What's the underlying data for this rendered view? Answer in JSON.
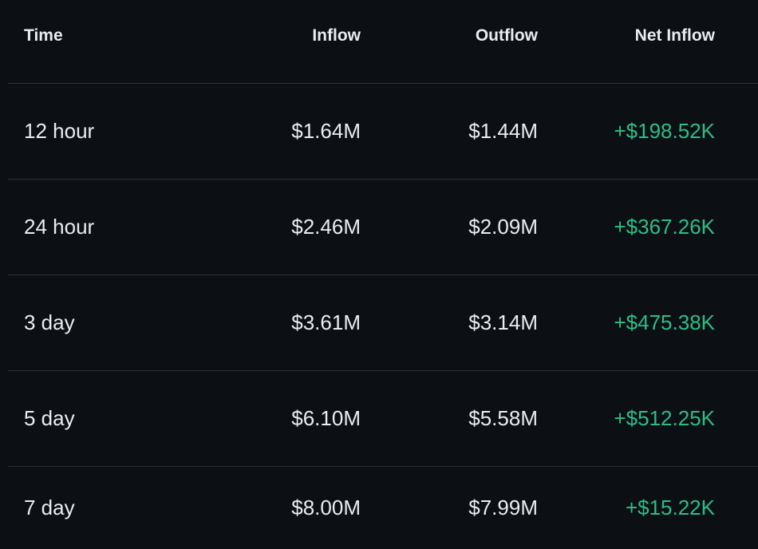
{
  "table": {
    "headers": {
      "time": "Time",
      "inflow": "Inflow",
      "outflow": "Outflow",
      "net_inflow": "Net Inflow"
    },
    "rows": [
      {
        "time": "12 hour",
        "inflow": "$1.64M",
        "outflow": "$1.44M",
        "net_inflow": "+$198.52K"
      },
      {
        "time": "24 hour",
        "inflow": "$2.46M",
        "outflow": "$2.09M",
        "net_inflow": "+$367.26K"
      },
      {
        "time": "3 day",
        "inflow": "$3.61M",
        "outflow": "$3.14M",
        "net_inflow": "+$475.38K"
      },
      {
        "time": "5 day",
        "inflow": "$6.10M",
        "outflow": "$5.58M",
        "net_inflow": "+$512.25K"
      },
      {
        "time": "7 day",
        "inflow": "$8.00M",
        "outflow": "$7.99M",
        "net_inflow": "+$15.22K"
      }
    ]
  },
  "colors": {
    "background": "#0c1015",
    "divider": "#2b3139",
    "text": "#eaecef",
    "positive": "#2ebd85"
  }
}
